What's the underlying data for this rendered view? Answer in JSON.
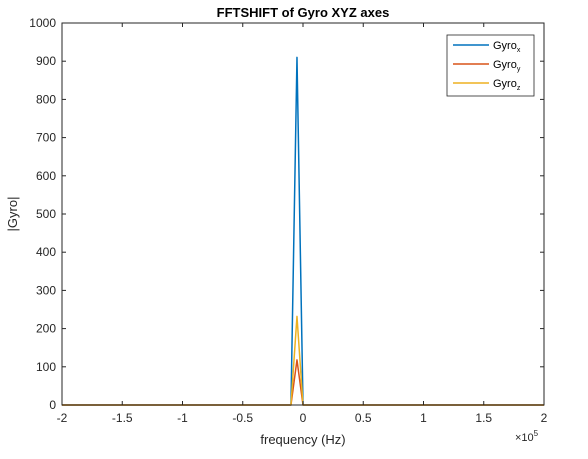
{
  "chart_data": {
    "type": "line",
    "title": "FFTSHIFT of Gyro XYZ axes",
    "xlabel": "frequency (Hz)",
    "ylabel": "|Gyro|",
    "x_multiplier": "×10",
    "x_multiplier_exponent": "5",
    "xlim": [
      -2,
      2
    ],
    "ylim": [
      0,
      1000
    ],
    "x_ticks": [
      -2,
      -1.5,
      -1,
      -0.5,
      0,
      0.5,
      1,
      1.5,
      2
    ],
    "x_tick_labels": [
      "-2",
      "-1.5",
      "-1",
      "-0.5",
      "0",
      "0.5",
      "1",
      "1.5",
      "2"
    ],
    "y_ticks": [
      0,
      100,
      200,
      300,
      400,
      500,
      600,
      700,
      800,
      900,
      1000
    ],
    "y_tick_labels": [
      "0",
      "100",
      "200",
      "300",
      "400",
      "500",
      "600",
      "700",
      "800",
      "900",
      "1000"
    ],
    "grid": false,
    "legend_position": "top-right",
    "series": [
      {
        "name": "Gyro",
        "subscript": "x",
        "color": "#0072BD",
        "x": [
          -2,
          -0.1,
          -0.05,
          0,
          2
        ],
        "y": [
          0,
          0,
          910,
          0,
          0
        ]
      },
      {
        "name": "Gyro",
        "subscript": "y",
        "color": "#D95319",
        "x": [
          -2,
          -0.1,
          -0.05,
          0,
          2
        ],
        "y": [
          0,
          0,
          118,
          0,
          0
        ]
      },
      {
        "name": "Gyro",
        "subscript": "z",
        "color": "#EDB120",
        "x": [
          -2,
          -0.1,
          -0.05,
          0,
          2
        ],
        "y": [
          0,
          0,
          232,
          0,
          0
        ]
      }
    ]
  }
}
